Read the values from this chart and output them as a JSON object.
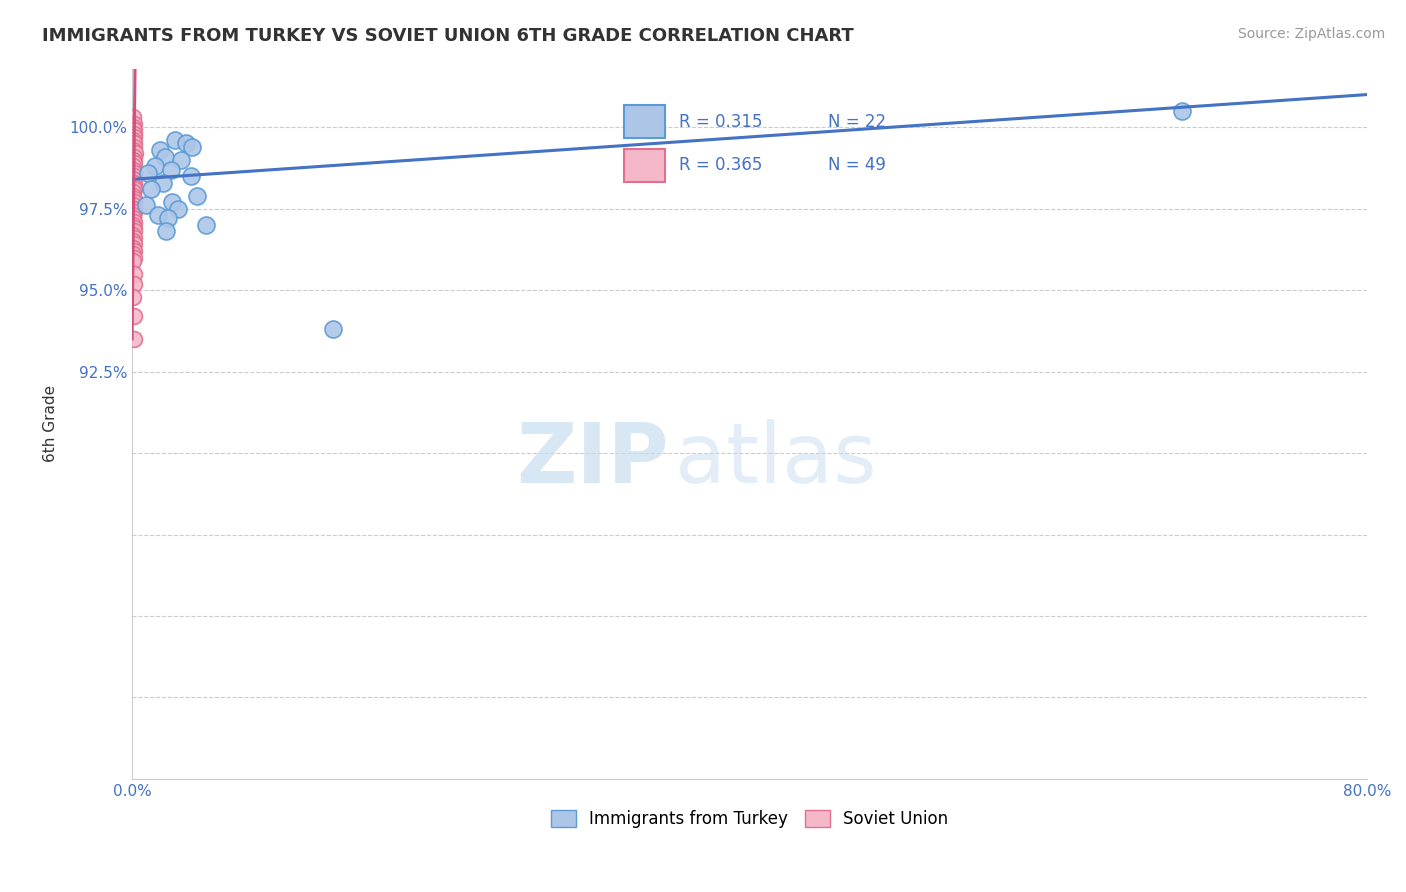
{
  "title": "IMMIGRANTS FROM TURKEY VS SOVIET UNION 6TH GRADE CORRELATION CHART",
  "source": "Source: ZipAtlas.com",
  "ylabel": "6th Grade",
  "xlim": [
    0.0,
    80.0
  ],
  "ylim": [
    80.0,
    101.8
  ],
  "xtick_vals": [
    0.0,
    20.0,
    40.0,
    60.0,
    80.0
  ],
  "xticklabels": [
    "0.0%",
    "",
    "",
    "",
    "80.0%"
  ],
  "ytick_vals": [
    80.0,
    82.5,
    85.0,
    87.5,
    90.0,
    92.5,
    95.0,
    97.5,
    100.0
  ],
  "yticklabels": [
    "",
    "",
    "",
    "",
    "",
    "92.5%",
    "95.0%",
    "97.5%",
    "100.0%"
  ],
  "turkey_color": "#adc6e8",
  "soviet_color": "#f5b8c8",
  "turkey_edge": "#5b9bd5",
  "soviet_edge": "#e07090",
  "regression_blue": "#4472c4",
  "regression_pink": "#d05080",
  "turkey_x": [
    2.8,
    3.5,
    3.9,
    1.8,
    2.1,
    3.2,
    1.5,
    2.5,
    1.0,
    3.8,
    2.0,
    1.2,
    4.2,
    2.6,
    0.9,
    3.0,
    1.7,
    2.3,
    4.8,
    68.0,
    2.2,
    13.0
  ],
  "turkey_y": [
    99.6,
    99.5,
    99.4,
    99.3,
    99.1,
    99.0,
    98.8,
    98.7,
    98.6,
    98.5,
    98.3,
    98.1,
    97.9,
    97.7,
    97.6,
    97.5,
    97.3,
    97.2,
    97.0,
    100.5,
    96.8,
    93.8
  ],
  "soviet_x": [
    0.08,
    0.12,
    0.09,
    0.15,
    0.1,
    0.11,
    0.07,
    0.13,
    0.14,
    0.06,
    0.16,
    0.1,
    0.08,
    0.12,
    0.09,
    0.07,
    0.11,
    0.13,
    0.06,
    0.14,
    0.08,
    0.1,
    0.09,
    0.07,
    0.12,
    0.11,
    0.08,
    0.13,
    0.1,
    0.06,
    0.09,
    0.14,
    0.07,
    0.11,
    0.12,
    0.08,
    0.1,
    0.09,
    0.13,
    0.06,
    0.11,
    0.07,
    0.14,
    0.08,
    0.12,
    0.1,
    0.09,
    0.11,
    0.13
  ],
  "soviet_y": [
    100.3,
    100.1,
    100.0,
    99.9,
    99.8,
    99.7,
    99.6,
    99.5,
    99.4,
    99.3,
    99.2,
    99.1,
    99.0,
    98.9,
    98.8,
    98.7,
    98.6,
    98.5,
    98.4,
    98.3,
    98.2,
    98.1,
    98.0,
    97.9,
    97.8,
    97.7,
    97.6,
    97.5,
    97.4,
    97.3,
    97.2,
    97.1,
    97.0,
    96.9,
    96.8,
    96.7,
    96.6,
    96.5,
    96.4,
    96.3,
    96.2,
    96.1,
    96.0,
    95.9,
    95.5,
    95.2,
    94.8,
    94.2,
    93.5
  ],
  "blue_line_x": [
    0.0,
    80.0
  ],
  "blue_line_y": [
    98.4,
    101.0
  ],
  "pink_line_x": [
    0.0,
    0.16
  ],
  "pink_line_y": [
    93.5,
    100.5
  ],
  "watermark_top": "ZIP",
  "watermark_bot": "atlas",
  "background_color": "#ffffff",
  "grid_color": "#cccccc",
  "tick_color": "#4472c4",
  "title_color": "#333333"
}
